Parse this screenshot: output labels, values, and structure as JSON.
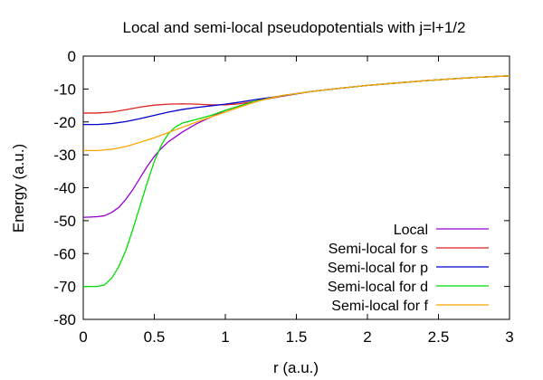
{
  "chart_data": {
    "type": "line",
    "title": "Local and semi-local pseudopotentials with j=l+1/2",
    "xlabel": "r (a.u.)",
    "ylabel": "Energy (a.u.)",
    "xlim": [
      0,
      3
    ],
    "ylim": [
      -80,
      0
    ],
    "xticks": [
      0,
      0.5,
      1,
      1.5,
      2,
      2.5,
      3
    ],
    "xtick_labels": [
      "0",
      "0.5",
      "1",
      "1.5",
      "2",
      "2.5",
      "3"
    ],
    "yticks": [
      0,
      -10,
      -20,
      -30,
      -40,
      -50,
      -60,
      -70,
      -80
    ],
    "ytick_labels": [
      "0",
      "-10",
      "-20",
      "-30",
      "-40",
      "-50",
      "-60",
      "-70",
      "-80"
    ],
    "grid": false,
    "legend_position": "bottom-right",
    "series": [
      {
        "name": "Local",
        "color": "#9400d3",
        "points": [
          [
            0,
            -49
          ],
          [
            0.1,
            -48.8
          ],
          [
            0.15,
            -48.5
          ],
          [
            0.2,
            -47.5
          ],
          [
            0.25,
            -46
          ],
          [
            0.3,
            -43.5
          ],
          [
            0.35,
            -40.5
          ],
          [
            0.4,
            -37
          ],
          [
            0.45,
            -33.5
          ],
          [
            0.5,
            -30.5
          ],
          [
            0.55,
            -28
          ],
          [
            0.6,
            -26
          ],
          [
            0.7,
            -23
          ],
          [
            0.8,
            -20.5
          ],
          [
            0.9,
            -18.5
          ],
          [
            1.0,
            -16.5
          ],
          [
            1.2,
            -13.8
          ],
          [
            1.4,
            -12
          ],
          [
            1.6,
            -10.8
          ],
          [
            1.8,
            -9.8
          ],
          [
            2.0,
            -8.9
          ],
          [
            2.2,
            -8.2
          ],
          [
            2.4,
            -7.5
          ],
          [
            2.6,
            -6.9
          ],
          [
            2.8,
            -6.4
          ],
          [
            3.0,
            -6.0
          ]
        ]
      },
      {
        "name": "Semi-local for s",
        "color": "#dd2222",
        "points": [
          [
            0,
            -17.3
          ],
          [
            0.1,
            -17.3
          ],
          [
            0.2,
            -17.0
          ],
          [
            0.3,
            -16.3
          ],
          [
            0.4,
            -15.5
          ],
          [
            0.5,
            -14.9
          ],
          [
            0.6,
            -14.6
          ],
          [
            0.7,
            -14.5
          ],
          [
            0.8,
            -14.6
          ],
          [
            0.9,
            -14.8
          ],
          [
            1.0,
            -14.8
          ],
          [
            1.1,
            -14.5
          ],
          [
            1.2,
            -13.8
          ],
          [
            1.3,
            -13.0
          ],
          [
            1.4,
            -12.2
          ],
          [
            1.6,
            -10.8
          ],
          [
            1.8,
            -9.8
          ],
          [
            2.0,
            -8.9
          ],
          [
            2.2,
            -8.2
          ],
          [
            2.4,
            -7.5
          ],
          [
            2.6,
            -6.9
          ],
          [
            2.8,
            -6.4
          ],
          [
            3.0,
            -6.0
          ]
        ]
      },
      {
        "name": "Semi-local for p",
        "color": "#0000cc",
        "points": [
          [
            0,
            -20.8
          ],
          [
            0.1,
            -20.8
          ],
          [
            0.2,
            -20.5
          ],
          [
            0.3,
            -19.9
          ],
          [
            0.4,
            -19.0
          ],
          [
            0.5,
            -18.0
          ],
          [
            0.6,
            -17.0
          ],
          [
            0.7,
            -16.2
          ],
          [
            0.8,
            -15.6
          ],
          [
            0.9,
            -15.1
          ],
          [
            1.0,
            -14.6
          ],
          [
            1.1,
            -14.0
          ],
          [
            1.2,
            -13.3
          ],
          [
            1.3,
            -12.7
          ],
          [
            1.4,
            -12.1
          ],
          [
            1.6,
            -10.8
          ],
          [
            1.8,
            -9.8
          ],
          [
            2.0,
            -8.9
          ],
          [
            2.2,
            -8.2
          ],
          [
            2.4,
            -7.5
          ],
          [
            2.6,
            -6.9
          ],
          [
            2.8,
            -6.4
          ],
          [
            3.0,
            -6.0
          ]
        ]
      },
      {
        "name": "Semi-local for d",
        "color": "#00dd00",
        "points": [
          [
            0,
            -70
          ],
          [
            0.1,
            -70
          ],
          [
            0.15,
            -69.5
          ],
          [
            0.2,
            -67.5
          ],
          [
            0.25,
            -64
          ],
          [
            0.3,
            -59
          ],
          [
            0.35,
            -52.5
          ],
          [
            0.4,
            -45.5
          ],
          [
            0.45,
            -38.5
          ],
          [
            0.5,
            -32
          ],
          [
            0.55,
            -27
          ],
          [
            0.6,
            -23.5
          ],
          [
            0.65,
            -21.5
          ],
          [
            0.7,
            -20.3
          ],
          [
            0.8,
            -19.2
          ],
          [
            0.9,
            -18.0
          ],
          [
            1.0,
            -16.5
          ],
          [
            1.2,
            -13.8
          ],
          [
            1.4,
            -12
          ],
          [
            1.6,
            -10.8
          ],
          [
            1.8,
            -9.8
          ],
          [
            2.0,
            -8.9
          ],
          [
            2.2,
            -8.2
          ],
          [
            2.4,
            -7.5
          ],
          [
            2.6,
            -6.9
          ],
          [
            2.8,
            -6.4
          ],
          [
            3.0,
            -6.0
          ]
        ]
      },
      {
        "name": "Semi-local for f",
        "color": "#ffa500",
        "points": [
          [
            0,
            -28.7
          ],
          [
            0.1,
            -28.7
          ],
          [
            0.2,
            -28.3
          ],
          [
            0.3,
            -27.5
          ],
          [
            0.4,
            -26.2
          ],
          [
            0.5,
            -24.8
          ],
          [
            0.6,
            -23.2
          ],
          [
            0.7,
            -21.6
          ],
          [
            0.8,
            -20.0
          ],
          [
            0.9,
            -18.5
          ],
          [
            1.0,
            -17.0
          ],
          [
            1.1,
            -15.5
          ],
          [
            1.2,
            -14.1
          ],
          [
            1.3,
            -12.9
          ],
          [
            1.4,
            -12.0
          ],
          [
            1.6,
            -10.8
          ],
          [
            1.8,
            -9.8
          ],
          [
            2.0,
            -8.9
          ],
          [
            2.2,
            -8.2
          ],
          [
            2.4,
            -7.5
          ],
          [
            2.6,
            -6.9
          ],
          [
            2.8,
            -6.4
          ],
          [
            3.0,
            -6.0
          ]
        ]
      }
    ]
  }
}
